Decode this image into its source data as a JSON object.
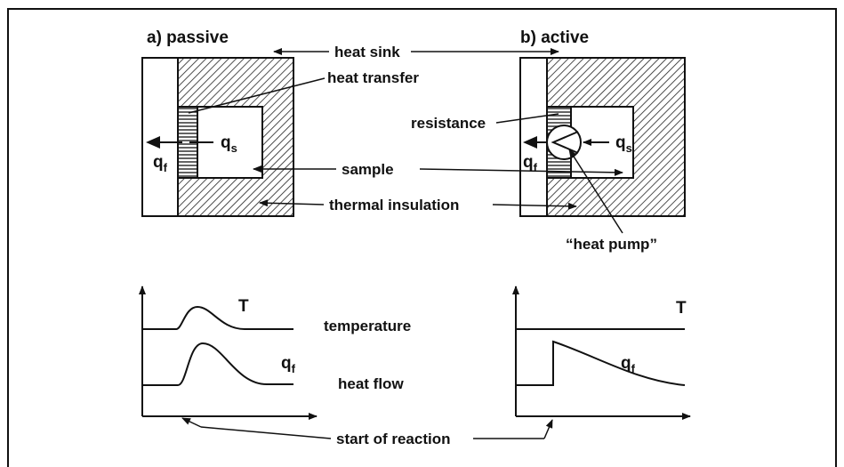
{
  "panels": [
    {
      "title": "a) passive"
    },
    {
      "title": "b) active"
    }
  ],
  "labels": {
    "heat_sink": "heat sink",
    "heat_transfer": "heat transfer",
    "resistance": "resistance",
    "sample": "sample",
    "thermal_insulation": "thermal insulation",
    "heat_pump": "“heat pump”",
    "temperature": "temperature",
    "heat_flow": "heat flow",
    "start_of_reaction": "start of reaction"
  },
  "symbols": {
    "qf": {
      "main": "q",
      "sub": "f"
    },
    "qs": {
      "main": "q",
      "sub": "s"
    },
    "T": "T"
  }
}
